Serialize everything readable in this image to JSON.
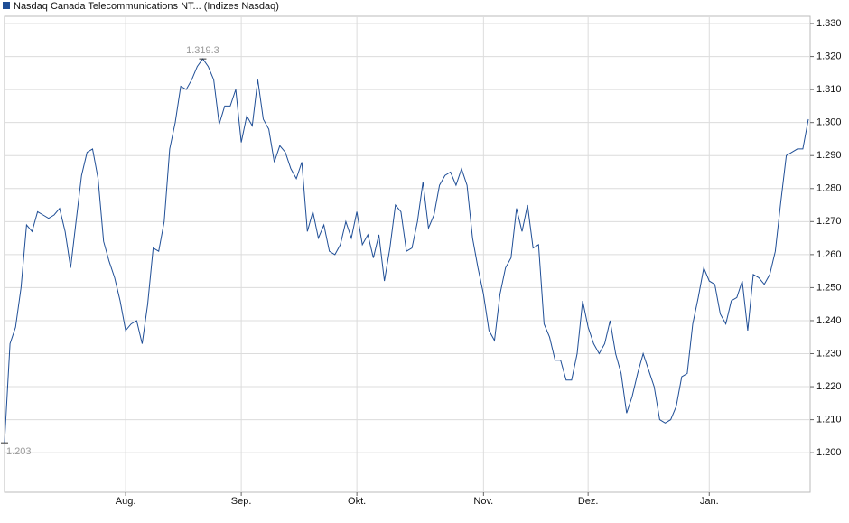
{
  "chart_data": {
    "type": "line",
    "series": [
      {
        "name": "Nasdaq Canada Telecommunications NT... (Indizes Nasdaq)",
        "color": "#1f4e96",
        "values": [
          1203,
          1233,
          1238,
          1250,
          1269,
          1267,
          1273,
          1272,
          1271,
          1272,
          1274,
          1267,
          1256,
          1270,
          1284,
          1291,
          1292,
          1283,
          1264,
          1258,
          1253,
          1246,
          1237,
          1239,
          1240,
          1233,
          1245,
          1262,
          1261,
          1270,
          1292,
          1300,
          1311,
          1310,
          1313,
          1317,
          1319.3,
          1317,
          1313,
          1299.5,
          1305,
          1305,
          1310,
          1294,
          1302,
          1299,
          1313,
          1301,
          1298,
          1288,
          1293,
          1291,
          1286,
          1283,
          1288,
          1267,
          1273,
          1265,
          1269,
          1261,
          1260,
          1263,
          1270,
          1265,
          1273,
          1263,
          1266,
          1259,
          1266,
          1252,
          1262,
          1275,
          1273,
          1261,
          1262,
          1270,
          1282,
          1268,
          1272,
          1281,
          1284,
          1285,
          1281,
          1286,
          1281,
          1265,
          1256,
          1248,
          1237,
          1234,
          1248,
          1256,
          1259,
          1274,
          1267,
          1275,
          1262,
          1263,
          1239,
          1235,
          1228,
          1228,
          1222,
          1222,
          1230,
          1246,
          1238,
          1233,
          1230,
          1233,
          1240,
          1230,
          1224,
          1212,
          1217,
          1224,
          1230,
          1225,
          1220,
          1210,
          1209,
          1210,
          1214,
          1223,
          1224,
          1239,
          1247,
          1256,
          1252,
          1251,
          1242,
          1239,
          1246,
          1247,
          1252,
          1237,
          1254,
          1253,
          1251,
          1254,
          1261,
          1276,
          1290,
          1291,
          1292,
          1292,
          1301
        ]
      }
    ],
    "annotations": [
      {
        "index": 36,
        "value": 1319.3,
        "label": "1.319.3"
      },
      {
        "index": 0,
        "value": 1203,
        "label": "1.203"
      }
    ],
    "xlim": [
      0,
      146
    ],
    "xticks": [
      {
        "value": 22,
        "label": "Aug."
      },
      {
        "value": 43,
        "label": "Sep."
      },
      {
        "value": 64,
        "label": "Okt."
      },
      {
        "value": 87,
        "label": "Nov."
      },
      {
        "value": 106,
        "label": "Dez."
      },
      {
        "value": 128,
        "label": "Jan."
      }
    ],
    "ylim": [
      1188,
      1332.2
    ],
    "yticks": [
      {
        "value": 1200,
        "label": "1.200"
      },
      {
        "value": 1210,
        "label": "1.210"
      },
      {
        "value": 1220,
        "label": "1.220"
      },
      {
        "value": 1230,
        "label": "1.230"
      },
      {
        "value": 1240,
        "label": "1.240"
      },
      {
        "value": 1250,
        "label": "1.250"
      },
      {
        "value": 1260,
        "label": "1.260"
      },
      {
        "value": 1270,
        "label": "1.270"
      },
      {
        "value": 1280,
        "label": "1.280"
      },
      {
        "value": 1290,
        "label": "1.290"
      },
      {
        "value": 1300,
        "label": "1.300"
      },
      {
        "value": 1310,
        "label": "1.310"
      },
      {
        "value": 1320,
        "label": "1.320"
      },
      {
        "value": 1330,
        "label": "1.330"
      }
    ],
    "grid": true
  }
}
